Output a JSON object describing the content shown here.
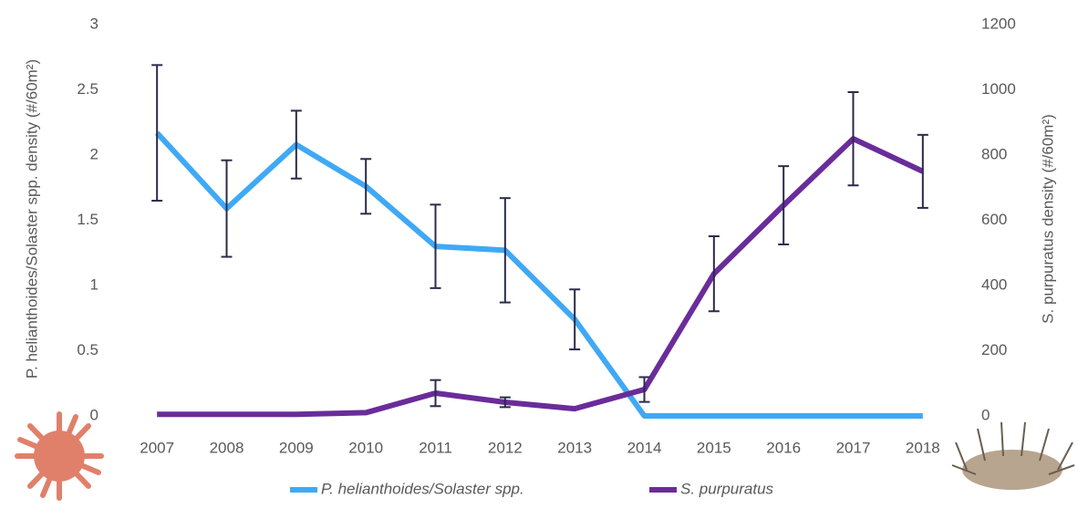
{
  "chart_data": {
    "type": "line",
    "categories": [
      "2007",
      "2008",
      "2009",
      "2010",
      "2011",
      "2012",
      "2013",
      "2014",
      "2015",
      "2016",
      "2017",
      "2018"
    ],
    "y_label": "P. helianthoides/Solaster spp. density (#/60m²)",
    "y2_label": "S. purpuratus density (#/60m²)",
    "ylim": [
      0,
      3
    ],
    "yticks": [
      0,
      0.5,
      1,
      1.5,
      2,
      2.5,
      3
    ],
    "y2lim": [
      0,
      1200
    ],
    "y2ticks": [
      0,
      200,
      400,
      600,
      800,
      1000,
      1200
    ],
    "legend": "bottom",
    "series": [
      {
        "name": "P. helianthoides/Solaster spp.",
        "color": "#3fa9f5",
        "axis": "y",
        "values": [
          2.17,
          1.59,
          2.08,
          1.76,
          1.3,
          1.27,
          0.74,
          0,
          0,
          0,
          0,
          0
        ],
        "errors": [
          0.52,
          0.37,
          0.26,
          0.21,
          0.32,
          0.4,
          0.23,
          null,
          null,
          null,
          null,
          null
        ]
      },
      {
        "name": "S. purpuratus",
        "color": "#6a2c9a",
        "axis": "y2",
        "values": [
          5,
          5,
          5,
          10,
          70,
          42,
          22,
          81,
          436,
          646,
          850,
          750
        ],
        "errors": [
          null,
          null,
          null,
          null,
          40,
          15,
          null,
          38,
          115,
          120,
          143,
          112
        ]
      }
    ]
  }
}
